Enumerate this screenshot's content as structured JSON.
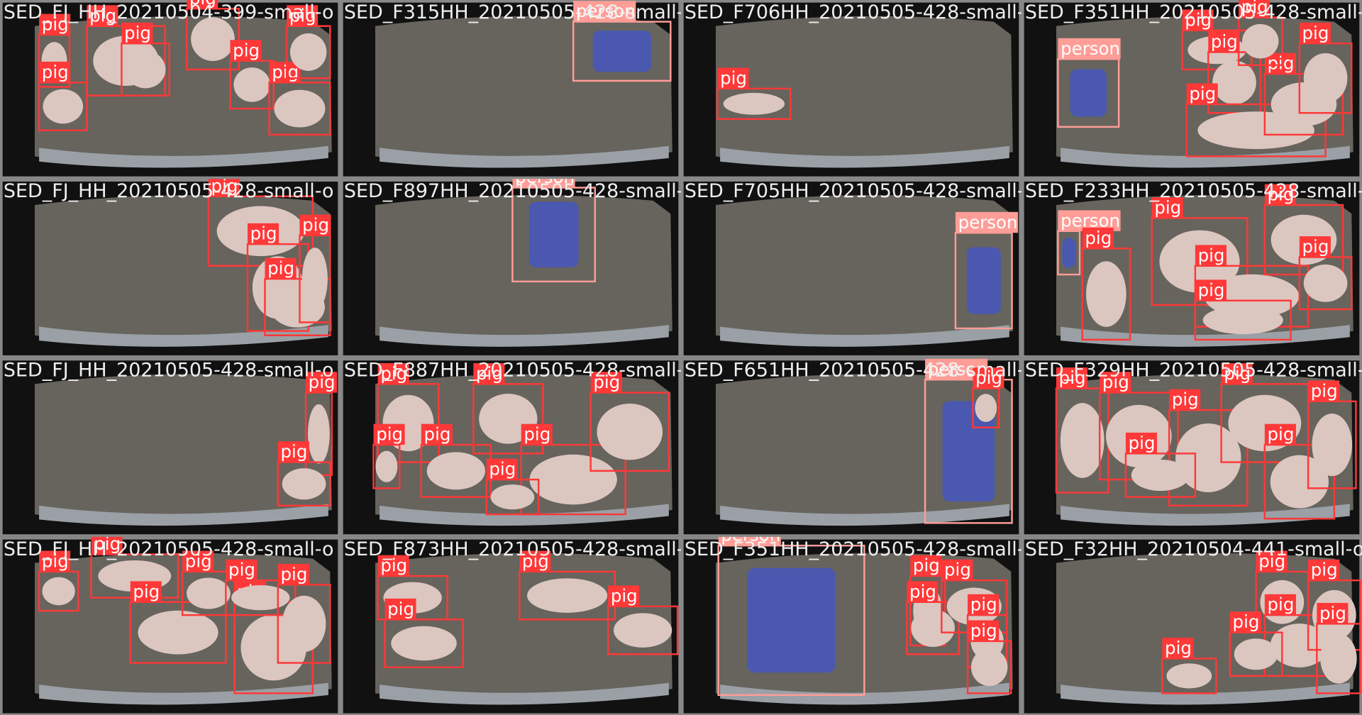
{
  "tiles": [
    {
      "title": "SED_FJ_HH_20210504-399-small-o",
      "detections": [
        "pig",
        "pig",
        "pig",
        "pig",
        "pig",
        "pig",
        "pig",
        "pig"
      ]
    },
    {
      "title": "SED_F315HH_20210505-428-small-o",
      "detections": [
        "person"
      ]
    },
    {
      "title": "SED_F706HH_20210505-428-small-o",
      "detections": [
        "pig"
      ]
    },
    {
      "title": "SED_F351HH_20210505-428-small-o",
      "detections": [
        "person",
        "pig",
        "pig",
        "pig",
        "pig",
        "pig",
        "pig"
      ]
    },
    {
      "title": "SED_FJ_HH_20210505-428-small-o",
      "detections": [
        "pig",
        "pig",
        "pig",
        "pig"
      ]
    },
    {
      "title": "SED_F897HH_20210505-428-small-o",
      "detections": [
        "person"
      ]
    },
    {
      "title": "SED_F705HH_20210505-428-small-o",
      "detections": [
        "person"
      ]
    },
    {
      "title": "SED_F233HH_20210505-428-small-o",
      "detections": [
        "person",
        "pig",
        "pig",
        "pig",
        "pig",
        "pig",
        "pig"
      ]
    },
    {
      "title": "SED_FJ_HH_20210505-428-small-o",
      "detections": [
        "pig",
        "pig"
      ]
    },
    {
      "title": "SED_F887HH_20210505-428-small-o",
      "detections": [
        "pig",
        "pig",
        "pig",
        "pig",
        "pig",
        "pig",
        "pig"
      ]
    },
    {
      "title": "SED_F651HH_20210505-428-small-o",
      "detections": [
        "person",
        "pig"
      ]
    },
    {
      "title": "SED_F329HH_20210505-428-small-o",
      "detections": [
        "pig",
        "pig",
        "pig",
        "pig",
        "pig",
        "pig",
        "pig"
      ]
    },
    {
      "title": "SED_FJ_HH_20210505-428-small-o",
      "detections": [
        "pig",
        "pig",
        "pig",
        "pig",
        "pig",
        "pig",
        "pig"
      ]
    },
    {
      "title": "SED_F873HH_20210505-428-small-o",
      "detections": [
        "pig",
        "pig",
        "pig",
        "pig"
      ]
    },
    {
      "title": "SED_F351HH_20210505-428-small-o",
      "detections": [
        "person",
        "pig",
        "pig",
        "pig",
        "pig",
        "pig"
      ]
    },
    {
      "title": "SED_F32HH_20210504-441-small-o",
      "detections": [
        "pig",
        "pig",
        "pig",
        "pig",
        "pig",
        "pig"
      ]
    }
  ]
}
